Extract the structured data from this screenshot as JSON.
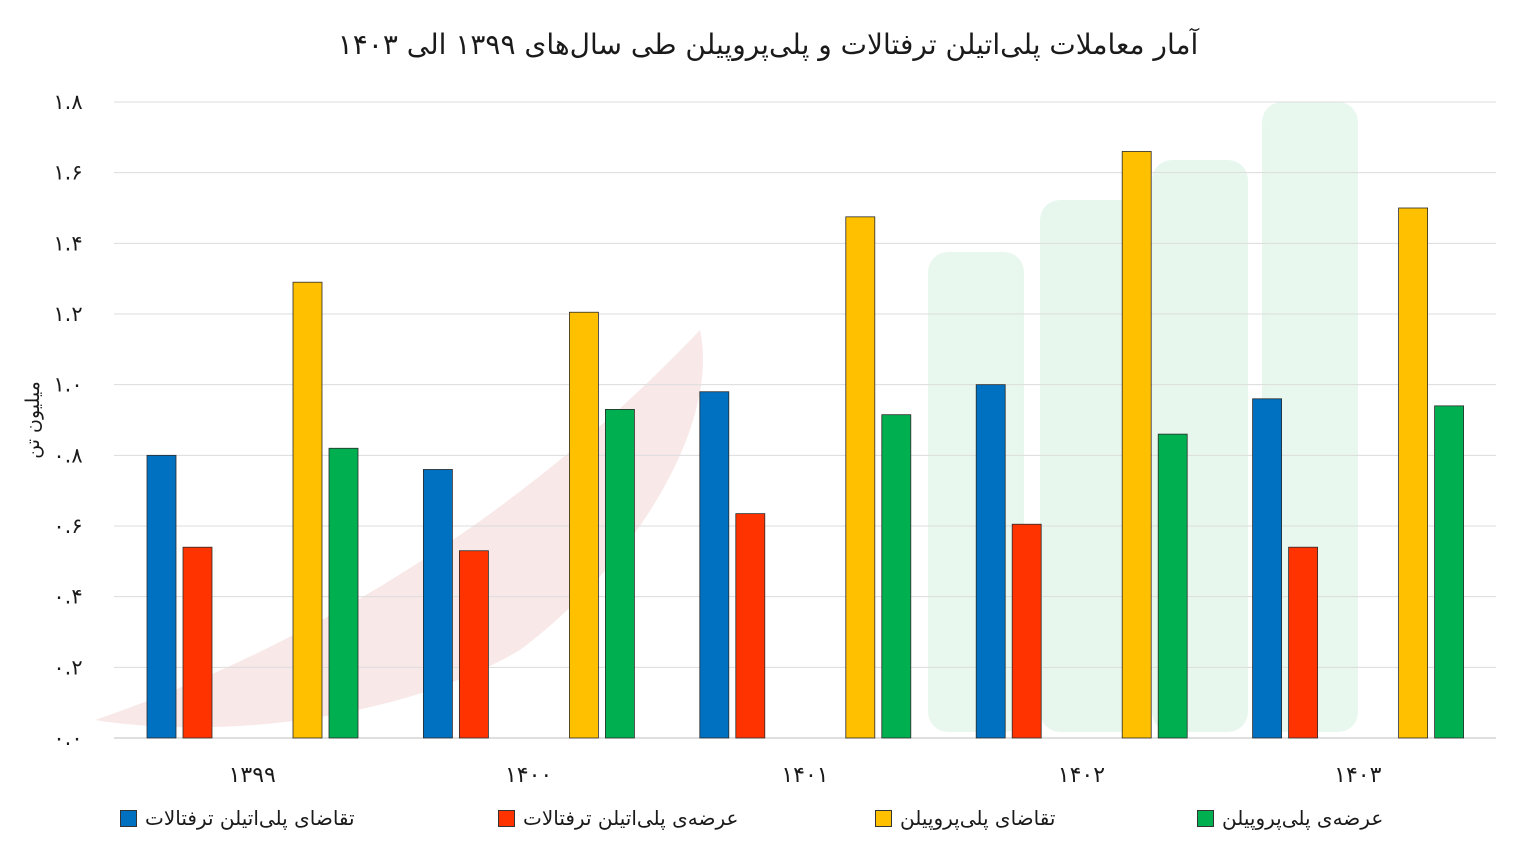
{
  "chart_data": {
    "type": "bar",
    "title": "آمار معاملات پلی‌اتیلن ترفتالات و پلی‌پروپیلن طی سال‌های ۱۳۹۹ الی ۱۴۰۳",
    "xlabel": "",
    "ylabel": "میلیون تن",
    "ylim": [
      0,
      1.8
    ],
    "yticks": [
      {
        "value": 0.0,
        "label": "۰.۰"
      },
      {
        "value": 0.2,
        "label": "۰.۲"
      },
      {
        "value": 0.4,
        "label": "۰.۴"
      },
      {
        "value": 0.6,
        "label": "۰.۶"
      },
      {
        "value": 0.8,
        "label": "۰.۸"
      },
      {
        "value": 1.0,
        "label": "۱.۰"
      },
      {
        "value": 1.2,
        "label": "۱.۲"
      },
      {
        "value": 1.4,
        "label": "۱.۴"
      },
      {
        "value": 1.6,
        "label": "۱.۶"
      },
      {
        "value": 1.8,
        "label": "۱.۸"
      }
    ],
    "grid": true,
    "legend_position": "bottom",
    "categories": [
      "۱۳۹۹",
      "۱۴۰۰",
      "۱۴۰۱",
      "۱۴۰۲",
      "۱۴۰۳"
    ],
    "series": [
      {
        "name": "تقاضای پلی‌اتیلن ترفتالات",
        "color": "#0070C0",
        "values": [
          0.8,
          0.76,
          0.98,
          1.0,
          0.96
        ]
      },
      {
        "name": "عرضه‌ی پلی‌اتیلن ترفتالات",
        "color": "#FF3300",
        "values": [
          0.54,
          0.53,
          0.635,
          0.605,
          0.54
        ]
      },
      {
        "name": "تقاضای پلی‌پروپیلن",
        "color": "#FFC000",
        "values": [
          1.29,
          1.205,
          1.475,
          1.66,
          1.5
        ]
      },
      {
        "name": "عرضه‌ی پلی‌پروپیلن",
        "color": "#00B050",
        "values": [
          0.82,
          0.93,
          0.915,
          0.86,
          0.94
        ]
      }
    ]
  }
}
